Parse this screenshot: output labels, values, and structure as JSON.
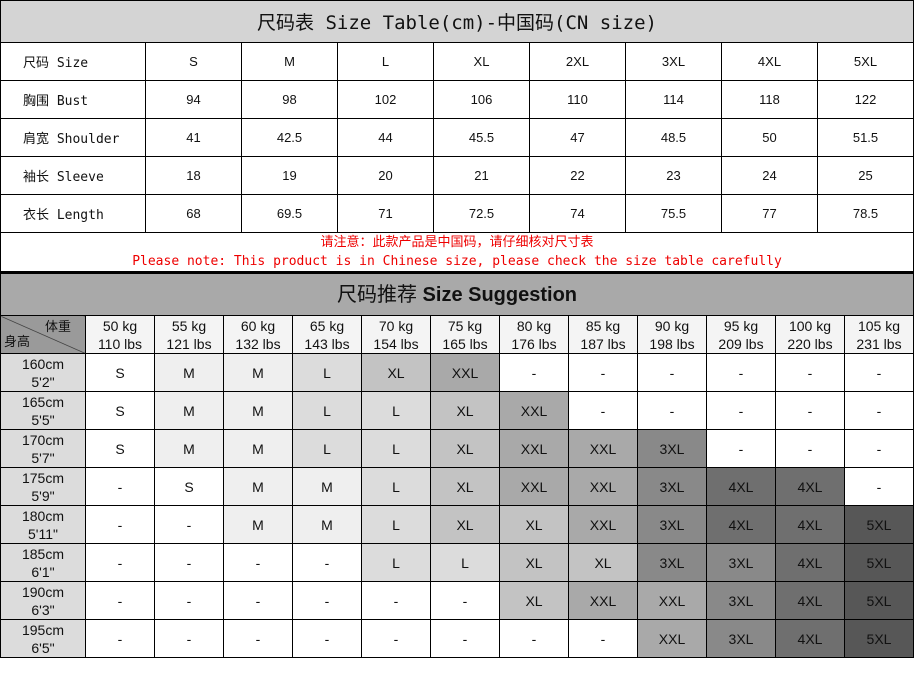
{
  "size_table": {
    "title": "尺码表 Size Table(cm)-中国码(CN size)",
    "rows": [
      {
        "label": "尺码 Size",
        "values": [
          "S",
          "M",
          "L",
          "XL",
          "2XL",
          "3XL",
          "4XL",
          "5XL"
        ]
      },
      {
        "label": "胸围 Bust",
        "values": [
          "94",
          "98",
          "102",
          "106",
          "110",
          "114",
          "118",
          "122"
        ]
      },
      {
        "label": "肩宽 Shoulder",
        "values": [
          "41",
          "42.5",
          "44",
          "45.5",
          "47",
          "48.5",
          "50",
          "51.5"
        ]
      },
      {
        "label": "袖长 Sleeve",
        "values": [
          "18",
          "19",
          "20",
          "21",
          "22",
          "23",
          "24",
          "25"
        ]
      },
      {
        "label": "衣长 Length",
        "values": [
          "68",
          "69.5",
          "71",
          "72.5",
          "74",
          "75.5",
          "77",
          "78.5"
        ]
      }
    ],
    "note_cn": "请注意：此款产品是中国码，请仔细核对尺寸表",
    "note_en": "Please note: This product is in Chinese size, please check the size table carefully"
  },
  "suggestion": {
    "title_cn": "尺码推荐",
    "title_en": "Size Suggestion",
    "corner_weight": "体重",
    "corner_height": "身高",
    "weights": [
      [
        "50 kg",
        "110 lbs"
      ],
      [
        "55 kg",
        "121 lbs"
      ],
      [
        "60 kg",
        "132 lbs"
      ],
      [
        "65 kg",
        "143 lbs"
      ],
      [
        "70 kg",
        "154 lbs"
      ],
      [
        "75 kg",
        "165 lbs"
      ],
      [
        "80 kg",
        "176 lbs"
      ],
      [
        "85 kg",
        "187 lbs"
      ],
      [
        "90 kg",
        "198 lbs"
      ],
      [
        "95 kg",
        "209 lbs"
      ],
      [
        "100 kg",
        "220 lbs"
      ],
      [
        "105 kg",
        "231 lbs"
      ]
    ],
    "rows": [
      {
        "cm": "160cm",
        "ft": "5'2\"",
        "sizes": [
          "S",
          "M",
          "M",
          "L",
          "XL",
          "XXL",
          "-",
          "-",
          "-",
          "-",
          "-",
          "-"
        ]
      },
      {
        "cm": "165cm",
        "ft": "5'5\"",
        "sizes": [
          "S",
          "M",
          "M",
          "L",
          "L",
          "XL",
          "XXL",
          "-",
          "-",
          "-",
          "-",
          "-"
        ]
      },
      {
        "cm": "170cm",
        "ft": "5'7\"",
        "sizes": [
          "S",
          "M",
          "M",
          "L",
          "L",
          "XL",
          "XXL",
          "XXL",
          "3XL",
          "-",
          "-",
          "-"
        ]
      },
      {
        "cm": "175cm",
        "ft": "5'9\"",
        "sizes": [
          "-",
          "S",
          "M",
          "M",
          "L",
          "XL",
          "XXL",
          "XXL",
          "3XL",
          "4XL",
          "4XL",
          "-"
        ]
      },
      {
        "cm": "180cm",
        "ft": "5'11\"",
        "sizes": [
          "-",
          "-",
          "M",
          "M",
          "L",
          "XL",
          "XL",
          "XXL",
          "3XL",
          "4XL",
          "4XL",
          "5XL"
        ]
      },
      {
        "cm": "185cm",
        "ft": "6'1\"",
        "sizes": [
          "-",
          "-",
          "-",
          "-",
          "L",
          "L",
          "XL",
          "XL",
          "3XL",
          "3XL",
          "4XL",
          "5XL"
        ]
      },
      {
        "cm": "190cm",
        "ft": "6'3\"",
        "sizes": [
          "-",
          "-",
          "-",
          "-",
          "-",
          "-",
          "XL",
          "XXL",
          "XXL",
          "3XL",
          "4XL",
          "5XL"
        ]
      },
      {
        "cm": "195cm",
        "ft": "6'5\"",
        "sizes": [
          "-",
          "-",
          "-",
          "-",
          "-",
          "-",
          "-",
          "-",
          "XXL",
          "3XL",
          "4XL",
          "5XL"
        ]
      }
    ],
    "size_colors": {
      "-": "#ffffff",
      "S": "#ffffff",
      "M": "#efefef",
      "L": "#dcdcdc",
      "XL": "#c3c3c3",
      "XXL": "#a9a9a9",
      "3XL": "#898989",
      "4XL": "#6f6f6f",
      "5XL": "#575757"
    }
  }
}
